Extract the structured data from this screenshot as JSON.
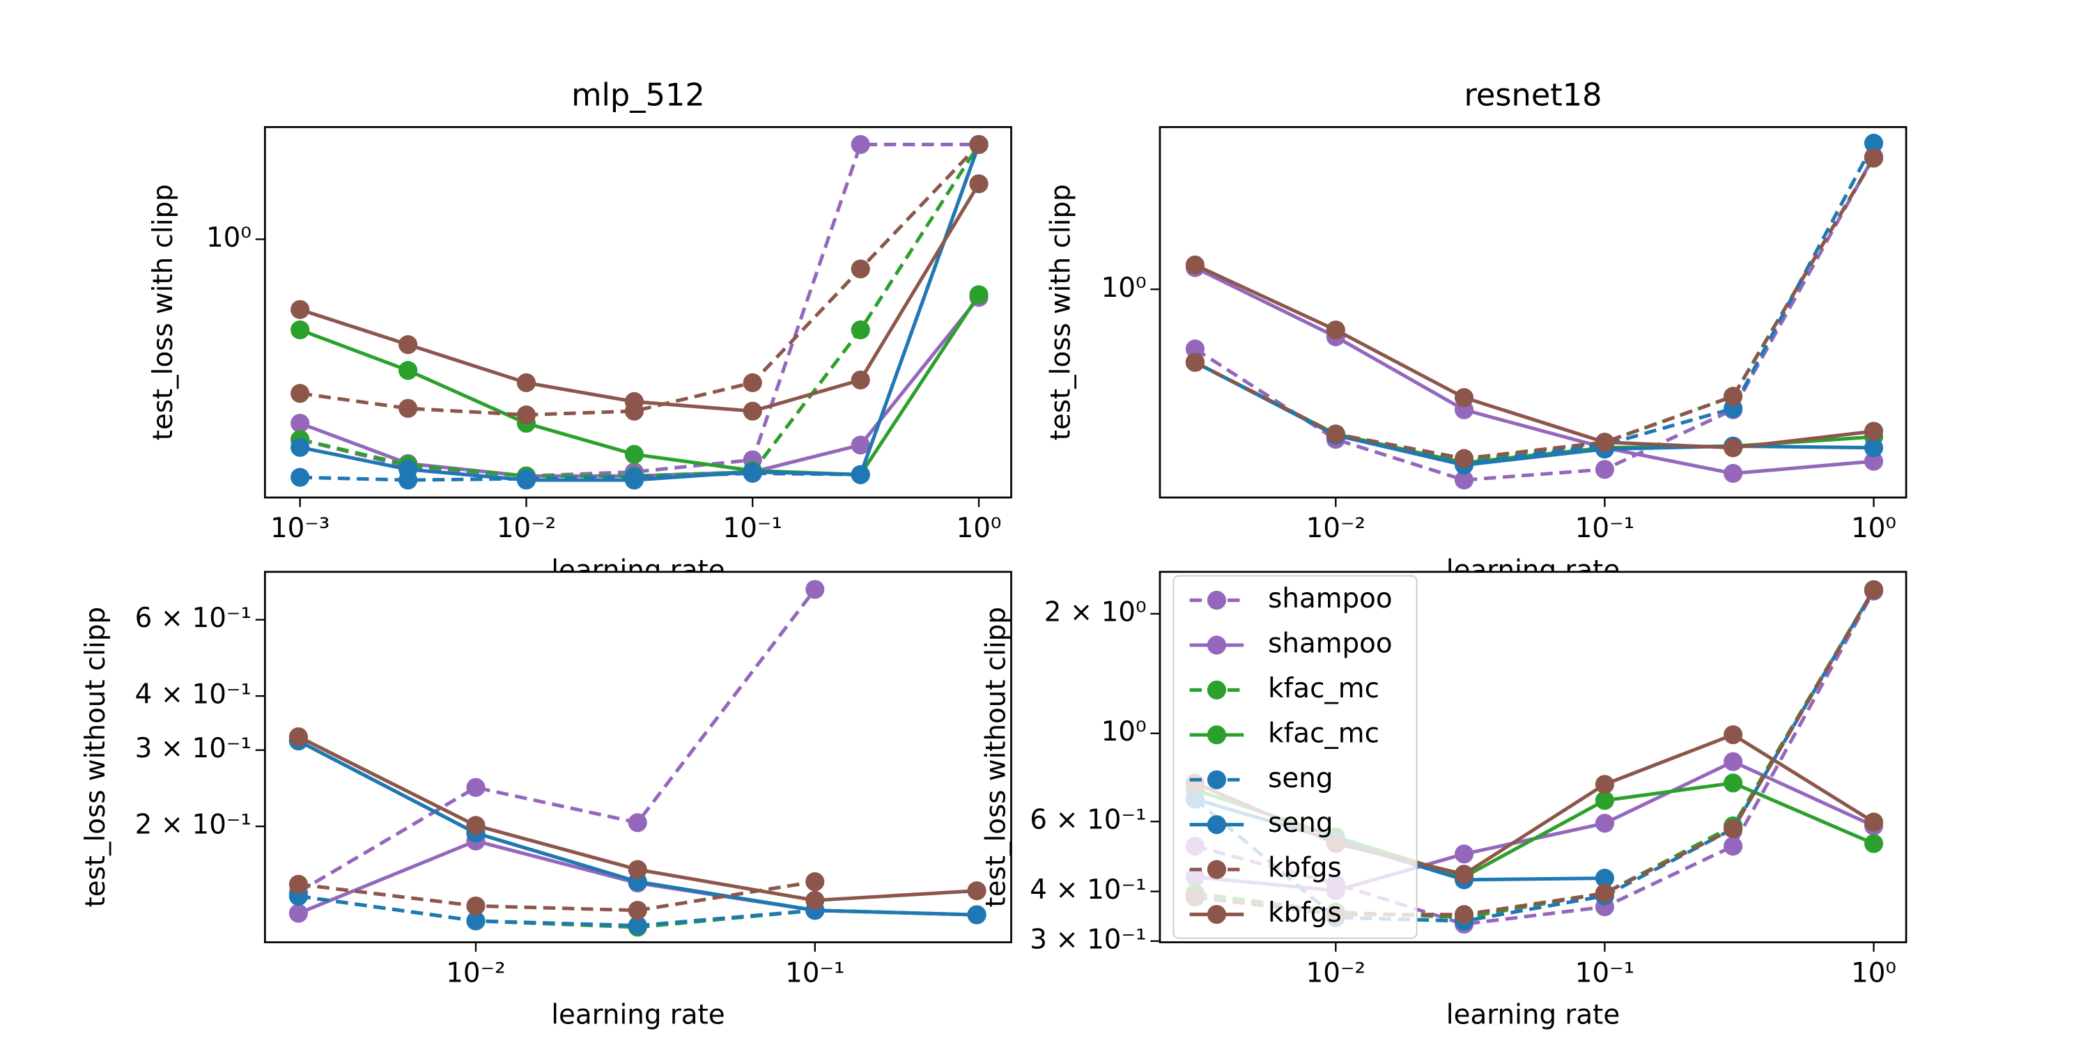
{
  "chart_data": [
    {
      "type": "line",
      "title": "mlp_512",
      "xlabel": "learning rate",
      "ylabel": "test_loss with clipp",
      "xscale": "log",
      "yscale": "log",
      "x": [
        0.001,
        0.003,
        0.01,
        0.03,
        0.1,
        0.3,
        1
      ],
      "xlim": [
        0.0007,
        1.39
      ],
      "xticks": [
        {
          "value": 0.001,
          "label": "10⁻³"
        },
        {
          "value": 0.01,
          "label": "10⁻²"
        },
        {
          "value": 0.1,
          "label": "10⁻¹"
        },
        {
          "value": 1,
          "label": "10⁰"
        }
      ],
      "ylim": [
        0.231,
        1.89
      ],
      "yticks": [
        {
          "value": 1,
          "label": "10⁰"
        }
      ],
      "series": [
        {
          "name": "shampoo",
          "color": "#9467bd",
          "linestyle": "dashed",
          "values": [
            0.321,
            0.275,
            0.261,
            0.267,
            0.286,
            1.712,
            1.712
          ]
        },
        {
          "name": "shampoo",
          "color": "#9467bd",
          "linestyle": "solid",
          "values": [
            0.352,
            0.28,
            0.261,
            0.261,
            0.267,
            0.311,
            0.719
          ]
        },
        {
          "name": "kfac_mc",
          "color": "#2ca02c",
          "linestyle": "dashed",
          "values": [
            0.321,
            0.278,
            0.261,
            0.261,
            0.267,
            0.598,
            1.712
          ]
        },
        {
          "name": "kfac_mc",
          "color": "#2ca02c",
          "linestyle": "solid",
          "values": [
            0.598,
            0.475,
            0.352,
            0.295,
            0.269,
            0.263,
            0.73
          ]
        },
        {
          "name": "seng",
          "color": "#1f77b4",
          "linestyle": "dashed",
          "values": [
            0.259,
            0.255,
            0.257,
            0.259,
            0.265,
            0.263,
            1.712
          ]
        },
        {
          "name": "seng",
          "color": "#1f77b4",
          "linestyle": "solid",
          "values": [
            0.307,
            0.271,
            0.255,
            0.255,
            0.267,
            0.263,
            1.712
          ]
        },
        {
          "name": "kbfgs",
          "color": "#8c564b",
          "linestyle": "dashed",
          "values": [
            0.417,
            0.383,
            0.369,
            0.377,
            0.443,
            0.845,
            1.712
          ]
        },
        {
          "name": "kbfgs",
          "color": "#8c564b",
          "linestyle": "solid",
          "values": [
            0.671,
            0.55,
            0.443,
            0.398,
            0.377,
            0.45,
            1.37
          ]
        }
      ]
    },
    {
      "type": "line",
      "title": "resnet18",
      "xlabel": "learning rate",
      "ylabel": "test_loss with clipp",
      "xscale": "log",
      "yscale": "log",
      "x": [
        0.003,
        0.01,
        0.03,
        0.1,
        0.3,
        1
      ],
      "xlim": [
        0.00222,
        1.32
      ],
      "xticks": [
        {
          "value": 0.01,
          "label": "10⁻²"
        },
        {
          "value": 0.1,
          "label": "10⁻¹"
        },
        {
          "value": 1,
          "label": "10⁰"
        }
      ],
      "ylim": [
        0.307,
        2.51
      ],
      "yticks": [
        {
          "value": 1,
          "label": "10⁰"
        }
      ],
      "series": [
        {
          "name": "shampoo",
          "color": "#9467bd",
          "linestyle": "dashed",
          "values": [
            0.713,
            0.427,
            0.339,
            0.36,
            0.505,
            2.122
          ]
        },
        {
          "name": "shampoo",
          "color": "#9467bd",
          "linestyle": "solid",
          "values": [
            1.131,
            0.764,
            0.505,
            0.407,
            0.352,
            0.377
          ]
        },
        {
          "name": "kfac_mc",
          "color": "#2ca02c",
          "linestyle": "dashed",
          "values": [
            0.661,
            0.44,
            0.377,
            0.42,
            0.545,
            2.105
          ]
        },
        {
          "name": "kfac_mc",
          "color": "#2ca02c",
          "linestyle": "solid",
          "values": [
            0.661,
            0.44,
            0.374,
            0.407,
            0.411,
            0.433
          ]
        },
        {
          "name": "seng",
          "color": "#1f77b4",
          "linestyle": "dashed",
          "values": [
            0.661,
            0.437,
            0.372,
            0.414,
            0.509,
            2.291
          ]
        },
        {
          "name": "seng",
          "color": "#1f77b4",
          "linestyle": "solid",
          "values": [
            0.661,
            0.437,
            0.369,
            0.404,
            0.411,
            0.407
          ]
        },
        {
          "name": "kbfgs",
          "color": "#8c564b",
          "linestyle": "dashed",
          "values": [
            0.661,
            0.44,
            0.383,
            0.42,
            0.545,
            2.105
          ]
        },
        {
          "name": "kbfgs",
          "color": "#8c564b",
          "linestyle": "solid",
          "values": [
            1.148,
            0.794,
            0.541,
            0.42,
            0.407,
            0.447
          ]
        }
      ]
    },
    {
      "type": "line",
      "xlabel": "learning rate",
      "ylabel": "test_loss without clipp",
      "xscale": "log",
      "yscale": "log",
      "x": [
        0.003,
        0.01,
        0.03,
        0.1,
        0.3
      ],
      "xlim": [
        0.00239,
        0.379
      ],
      "xticks": [
        {
          "value": 0.01,
          "label": "10⁻²"
        },
        {
          "value": 0.1,
          "label": "10⁻¹"
        }
      ],
      "ylim": [
        0.108,
        0.774
      ],
      "yticks": [
        {
          "value": 0.2,
          "label": "2 × 10⁻¹"
        },
        {
          "value": 0.3,
          "label": "3 × 10⁻¹"
        },
        {
          "value": 0.4,
          "label": "4 × 10⁻¹"
        },
        {
          "value": 0.6,
          "label": "6 × 10⁻¹"
        }
      ],
      "series": [
        {
          "name": "shampoo",
          "color": "#9467bd",
          "linestyle": "dashed",
          "values": [
            0.141,
            0.246,
            0.204,
            0.705,
            null
          ]
        },
        {
          "name": "shampoo",
          "color": "#9467bd",
          "linestyle": "solid",
          "values": [
            0.126,
            0.185,
            0.148,
            0.128,
            0.125
          ]
        },
        {
          "name": "kfac_mc",
          "color": "#2ca02c",
          "linestyle": "dashed",
          "values": [
            0.138,
            0.121,
            0.117,
            0.128,
            null
          ]
        },
        {
          "name": "kfac_mc",
          "color": "#2ca02c",
          "linestyle": "solid",
          "values": [
            0.315,
            0.193,
            0.149,
            0.128,
            0.125
          ]
        },
        {
          "name": "seng",
          "color": "#1f77b4",
          "linestyle": "dashed",
          "values": [
            0.138,
            0.121,
            0.118,
            0.128,
            null
          ]
        },
        {
          "name": "seng",
          "color": "#1f77b4",
          "linestyle": "solid",
          "values": [
            0.315,
            0.193,
            0.149,
            0.128,
            0.125
          ]
        },
        {
          "name": "kbfgs",
          "color": "#8c564b",
          "linestyle": "dashed",
          "values": [
            0.147,
            0.131,
            0.128,
            0.149,
            null
          ]
        },
        {
          "name": "kbfgs",
          "color": "#8c564b",
          "linestyle": "solid",
          "values": [
            0.322,
            0.201,
            0.159,
            0.135,
            0.142
          ]
        }
      ]
    },
    {
      "type": "line",
      "xlabel": "learning rate",
      "ylabel": "test_loss without clipp",
      "xscale": "log",
      "yscale": "log",
      "legend": "upper left",
      "x": [
        0.003,
        0.01,
        0.03,
        0.1,
        0.3,
        1
      ],
      "xlim": [
        0.00222,
        1.32
      ],
      "xticks": [
        {
          "value": 0.01,
          "label": "10⁻²"
        },
        {
          "value": 0.1,
          "label": "10⁻¹"
        },
        {
          "value": 1,
          "label": "10⁰"
        }
      ],
      "ylim": [
        0.298,
        2.55
      ],
      "yticks": [
        {
          "value": 0.3,
          "label": "3 × 10⁻¹"
        },
        {
          "value": 0.4,
          "label": "4 × 10⁻¹"
        },
        {
          "value": 0.6,
          "label": "6 × 10⁻¹"
        },
        {
          "value": 1,
          "label": "10⁰"
        },
        {
          "value": 2,
          "label": "2 × 10⁰"
        }
      ],
      "series": [
        {
          "name": "shampoo",
          "color": "#9467bd",
          "linestyle": "dashed",
          "values": [
            0.52,
            0.418,
            0.331,
            0.366,
            0.52,
            2.281
          ]
        },
        {
          "name": "shampoo",
          "color": "#9467bd",
          "linestyle": "solid",
          "values": [
            0.435,
            0.402,
            0.497,
            0.594,
            0.849,
            0.585
          ]
        },
        {
          "name": "kfac_mc",
          "color": "#2ca02c",
          "linestyle": "dashed",
          "values": [
            0.396,
            0.355,
            0.344,
            0.396,
            0.585,
            2.299
          ]
        },
        {
          "name": "kfac_mc",
          "color": "#2ca02c",
          "linestyle": "solid",
          "values": [
            0.721,
            0.549,
            0.435,
            0.678,
            0.75,
            0.528
          ]
        },
        {
          "name": "seng",
          "color": "#1f77b4",
          "linestyle": "dashed",
          "values": [
            0.683,
            0.344,
            0.337,
            0.39,
            0.575,
            2.299
          ]
        },
        {
          "name": "seng",
          "color": "#1f77b4",
          "linestyle": "solid",
          "values": [
            0.683,
            0.537,
            0.428,
            0.432,
            null,
            null
          ]
        },
        {
          "name": "kbfgs",
          "color": "#8c564b",
          "linestyle": "dashed",
          "values": [
            0.387,
            0.35,
            0.35,
            0.396,
            0.575,
            2.299
          ]
        },
        {
          "name": "kbfgs",
          "color": "#8c564b",
          "linestyle": "solid",
          "values": [
            0.75,
            0.528,
            0.442,
            0.744,
            0.992,
            0.598
          ]
        }
      ]
    }
  ]
}
